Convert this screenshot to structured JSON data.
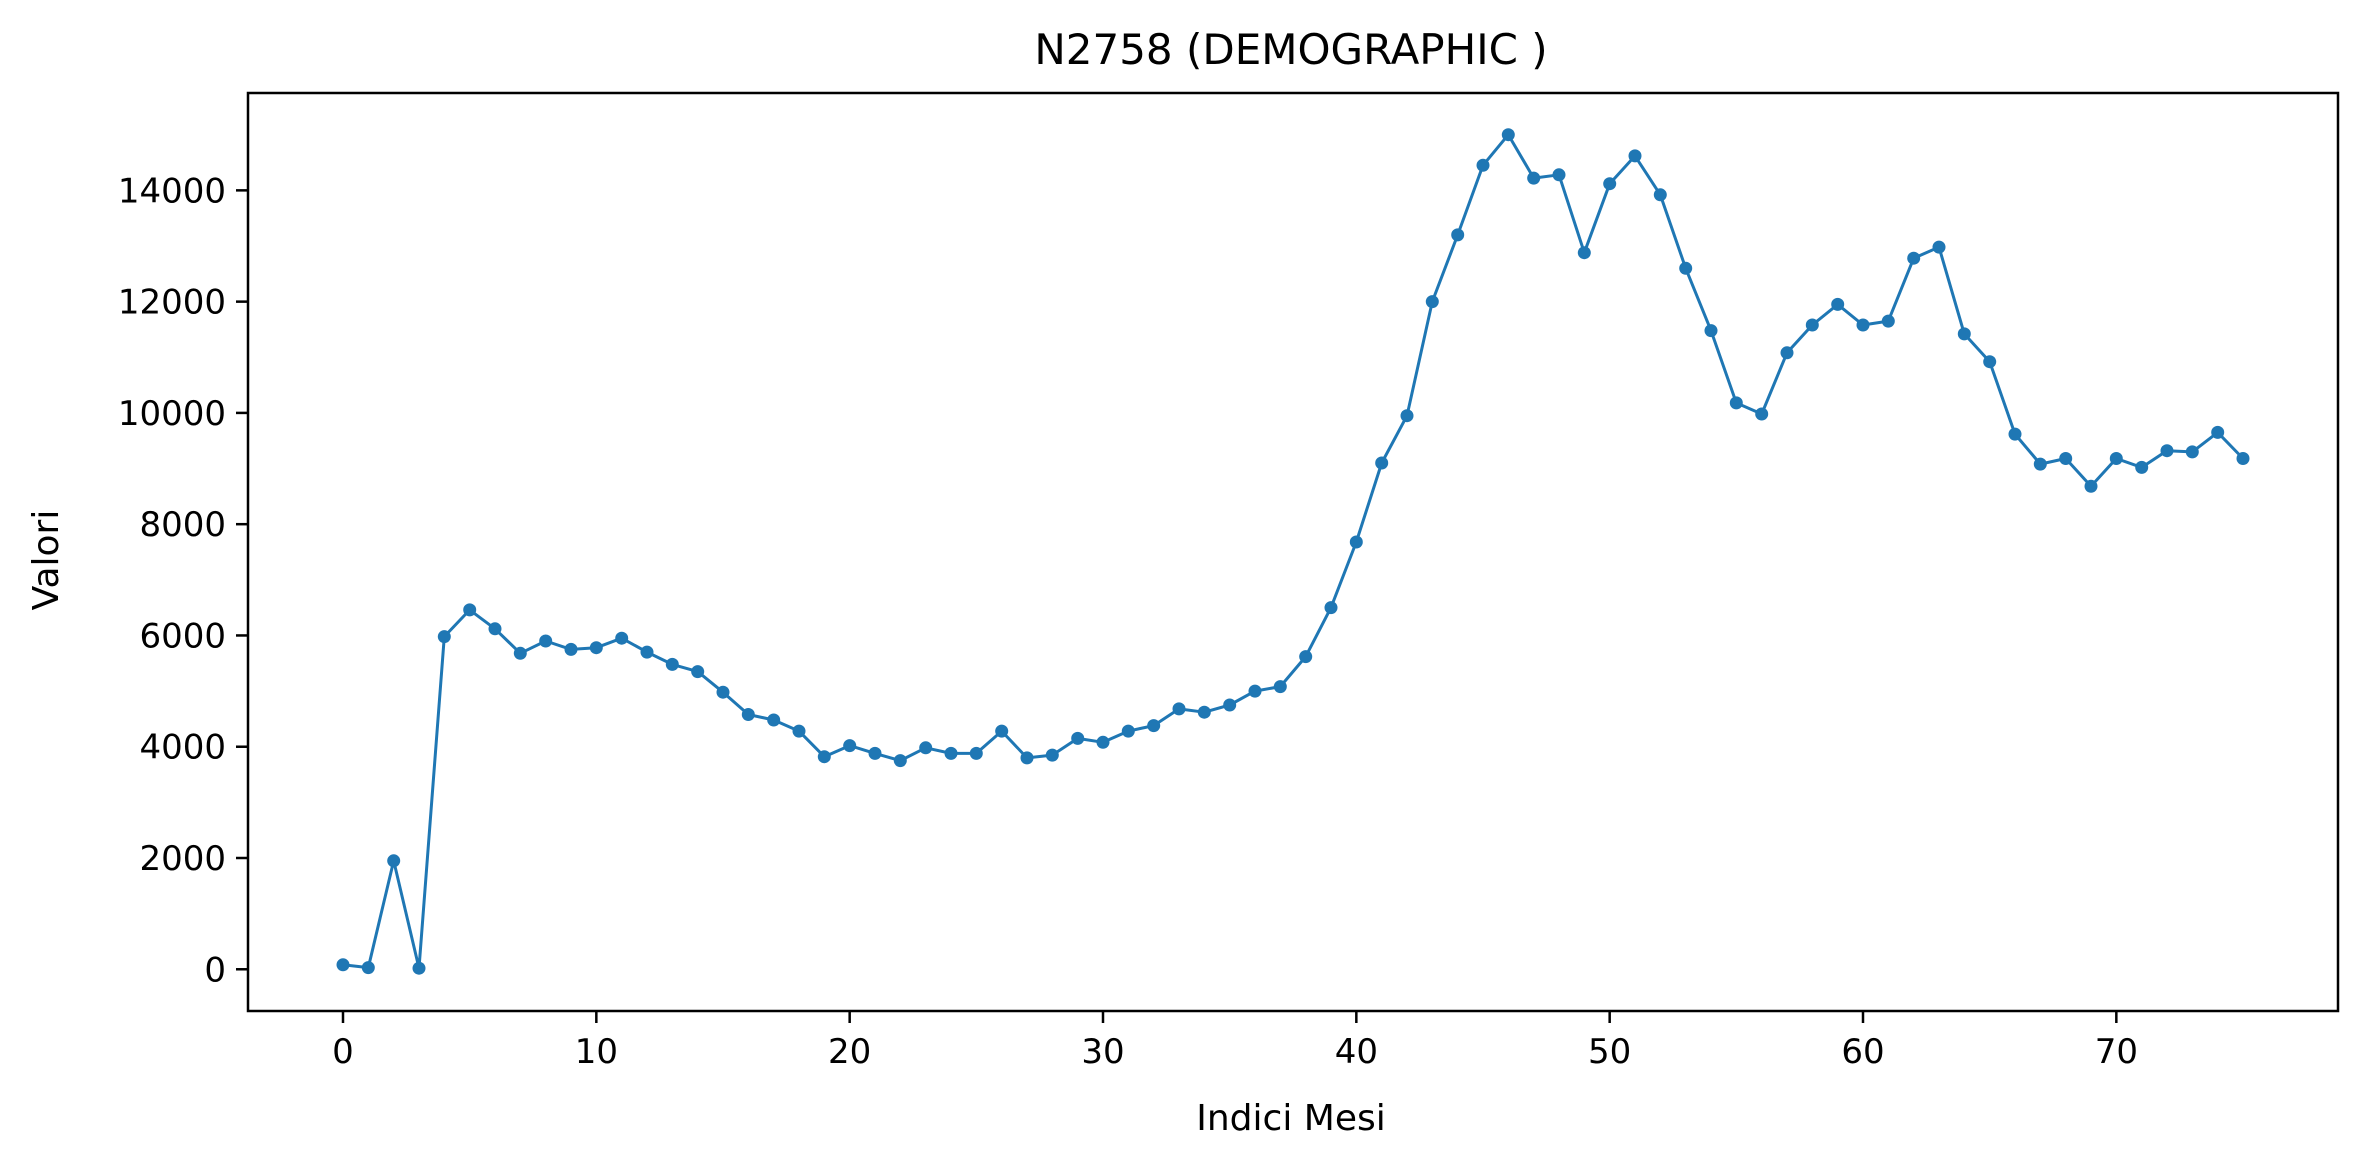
{
  "chart_data": {
    "type": "line",
    "title": "N2758 (DEMOGRAPHIC )",
    "xlabel": "Indici Mesi",
    "ylabel": "Valori",
    "xlim": [
      -3.75,
      78.75
    ],
    "ylim": [
      -750,
      15750
    ],
    "xticks": [
      0,
      10,
      20,
      30,
      40,
      50,
      60,
      70
    ],
    "xtick_labels": [
      "0",
      "10",
      "20",
      "30",
      "40",
      "50",
      "60",
      "70"
    ],
    "yticks": [
      0,
      2000,
      4000,
      6000,
      8000,
      10000,
      12000,
      14000
    ],
    "ytick_labels": [
      "0",
      "2000",
      "4000",
      "6000",
      "8000",
      "10000",
      "12000",
      "14000"
    ],
    "grid": false,
    "legend": "none",
    "series": [
      {
        "color": "#1f77b4",
        "marker": "circle",
        "x": [
          0,
          1,
          2,
          3,
          4,
          5,
          6,
          7,
          8,
          9,
          10,
          11,
          12,
          13,
          14,
          15,
          16,
          17,
          18,
          19,
          20,
          21,
          22,
          23,
          24,
          25,
          26,
          27,
          28,
          29,
          30,
          31,
          32,
          33,
          34,
          35,
          36,
          37,
          38,
          39,
          40,
          41,
          42,
          43,
          44,
          45,
          46,
          47,
          48,
          49,
          50,
          51,
          52,
          53,
          54,
          55,
          56,
          57,
          58,
          59,
          60,
          61,
          62,
          63,
          64,
          65,
          66,
          67,
          68,
          69,
          70,
          71,
          72,
          73,
          74,
          75
        ],
        "y": [
          80,
          30,
          1950,
          20,
          5980,
          6460,
          6120,
          5680,
          5900,
          5750,
          5780,
          5950,
          5700,
          5480,
          5350,
          4980,
          4580,
          4480,
          4280,
          3820,
          4020,
          3880,
          3750,
          3980,
          3880,
          3880,
          4280,
          3800,
          3850,
          4150,
          4080,
          4280,
          4380,
          4680,
          4620,
          4750,
          5000,
          5080,
          5620,
          6500,
          7680,
          9100,
          9950,
          12000,
          13200,
          14450,
          15000,
          14220,
          14280,
          12880,
          14120,
          14620,
          13920,
          12600,
          11480,
          10180,
          9980,
          11080,
          11580,
          11950,
          11580,
          11650,
          12780,
          12980,
          11420,
          10920,
          9620,
          9080,
          9180,
          8680,
          9180,
          9020,
          9320,
          9300,
          9650,
          9180
        ]
      }
    ]
  }
}
